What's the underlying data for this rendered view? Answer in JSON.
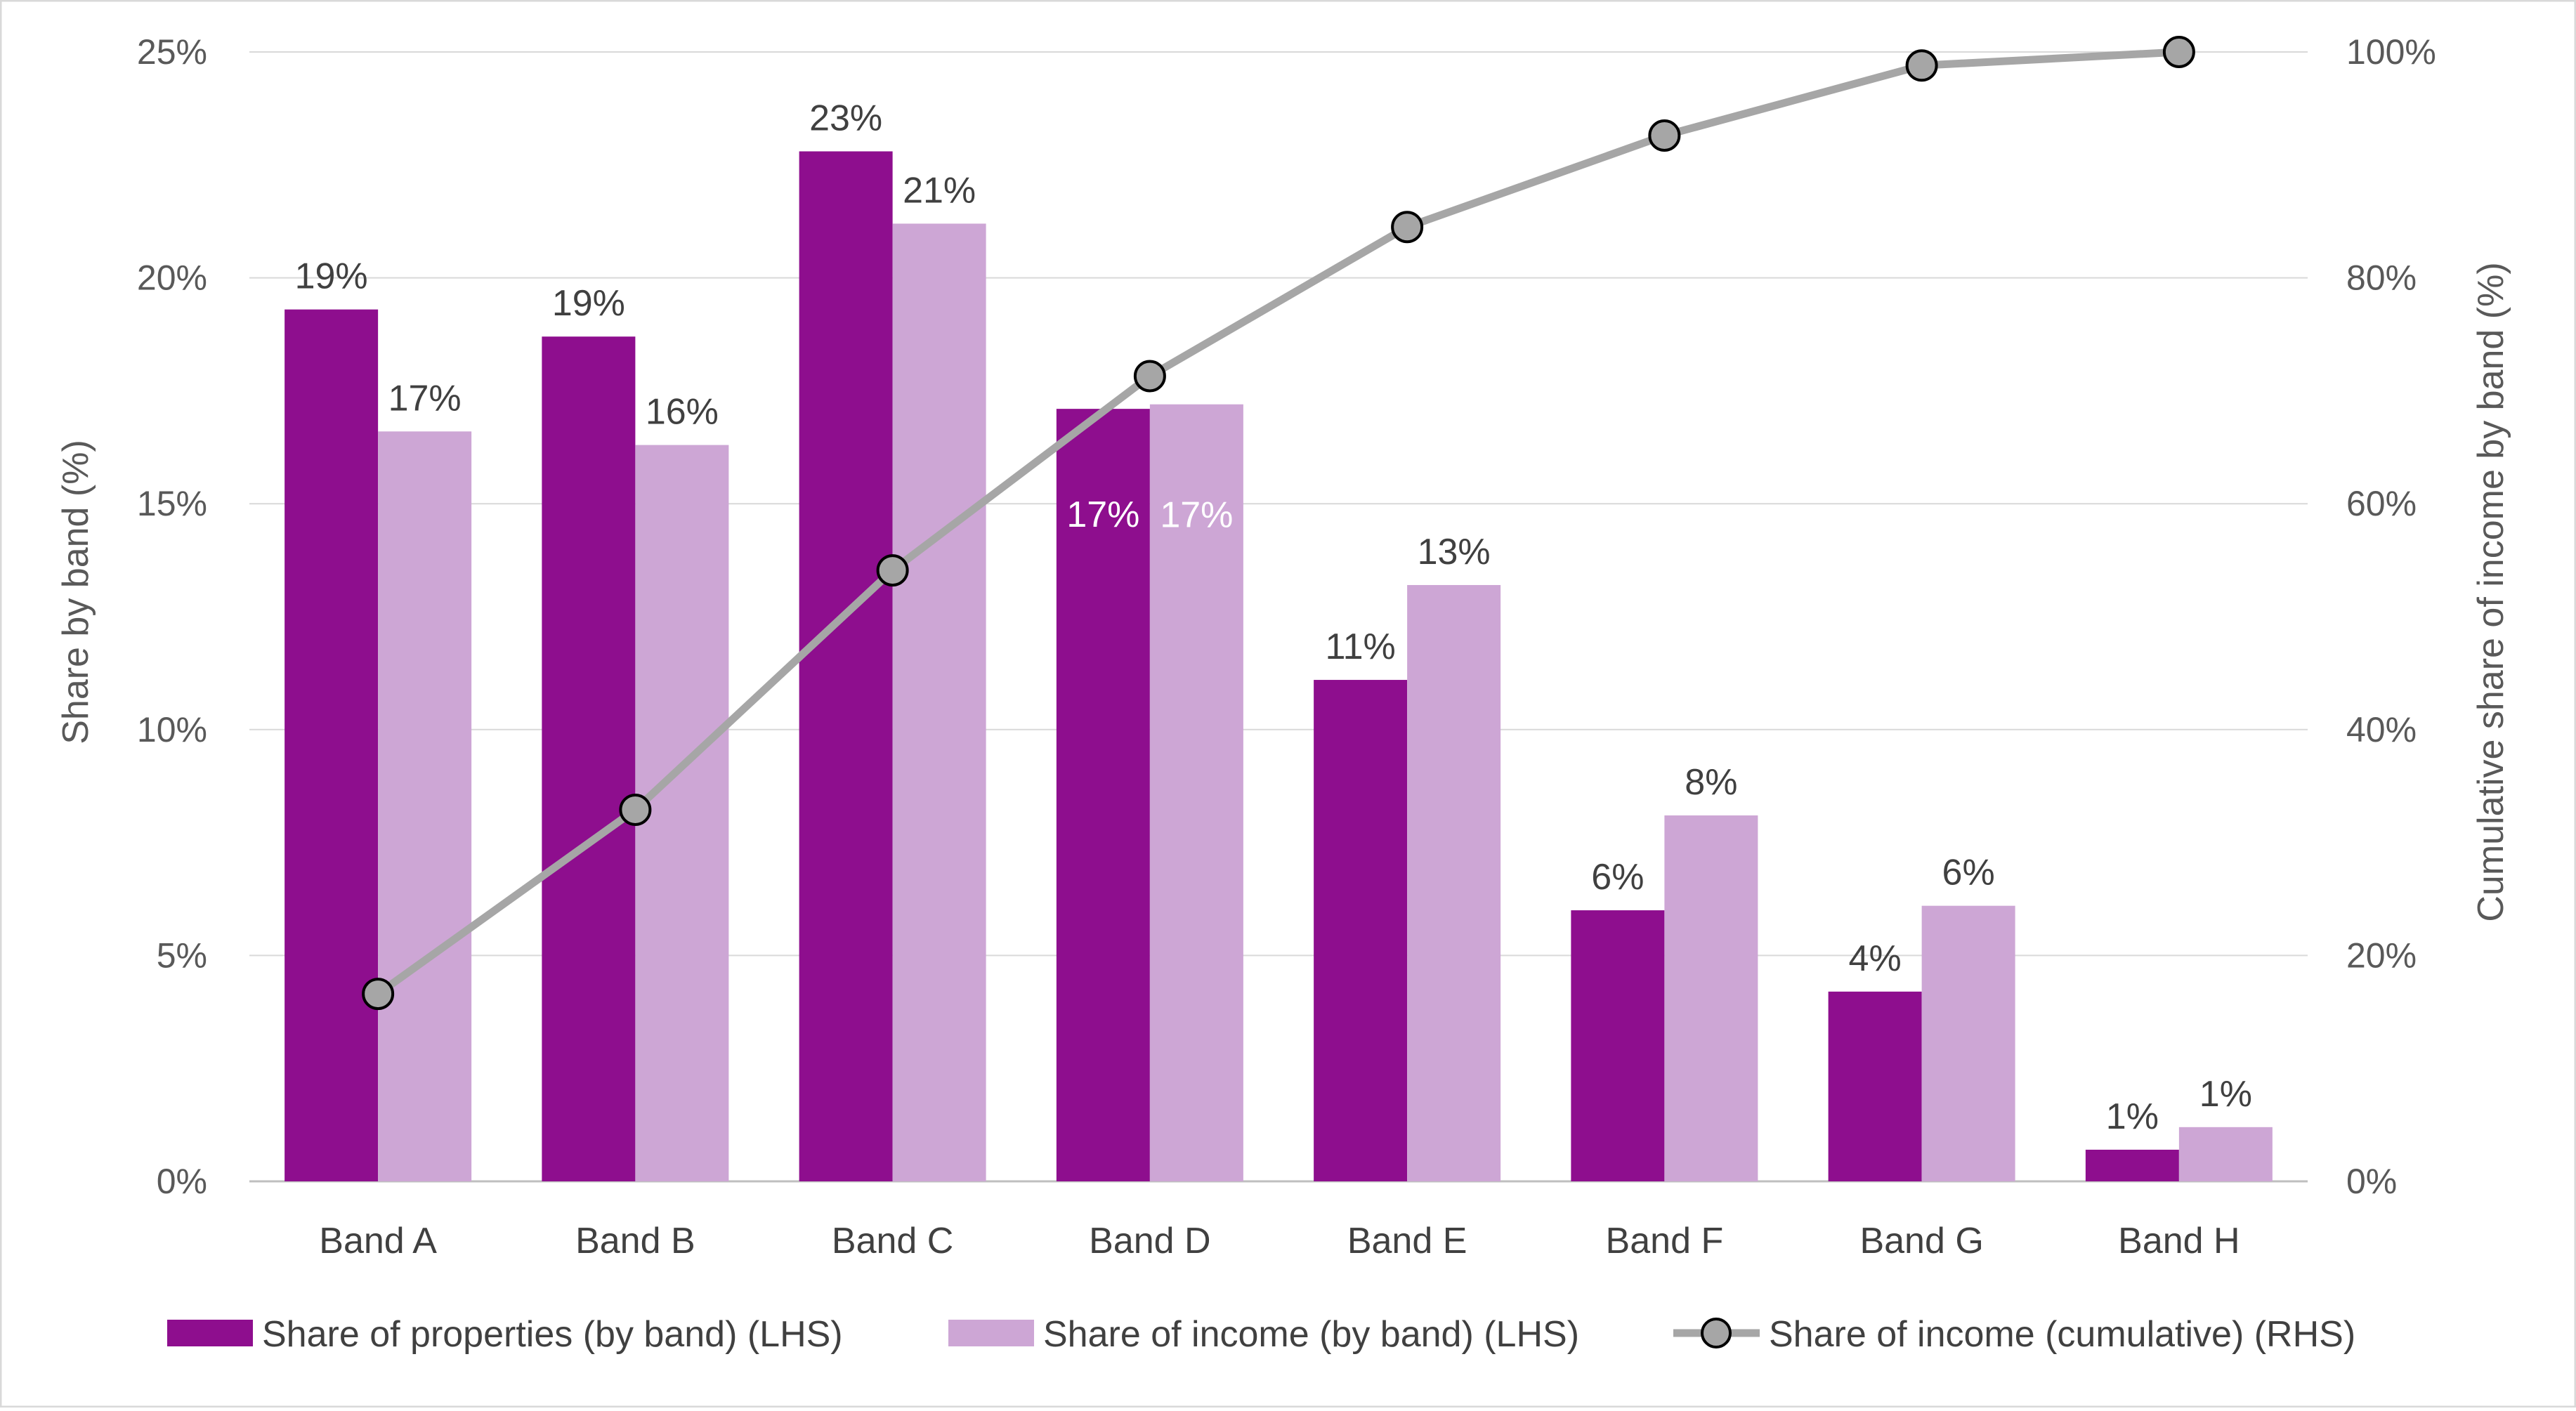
{
  "chart_data": {
    "type": "bar",
    "categories": [
      "Band A",
      "Band B",
      "Band C",
      "Band D",
      "Band E",
      "Band F",
      "Band G",
      "Band H"
    ],
    "series": [
      {
        "name": "Share of properties (by band) (LHS)",
        "type": "bar",
        "axis": "left",
        "color": "#8E0E8E",
        "values": [
          19.3,
          18.7,
          22.8,
          17.1,
          11.1,
          6.0,
          4.2,
          0.7
        ],
        "labels": [
          "19%",
          "19%",
          "23%",
          "17%",
          "11%",
          "6%",
          "4%",
          "1%"
        ]
      },
      {
        "name": "Share of income (by band) (LHS)",
        "type": "bar",
        "axis": "left",
        "color": "#CDA6D5",
        "values": [
          16.6,
          16.3,
          21.2,
          17.2,
          13.2,
          8.1,
          6.1,
          1.2
        ],
        "labels": [
          "17%",
          "16%",
          "21%",
          "17%",
          "13%",
          "8%",
          "6%",
          "1%"
        ]
      },
      {
        "name": "Share of income (cumulative) (RHS)",
        "type": "line",
        "axis": "right",
        "color": "#A6A6A6",
        "values": [
          16.6,
          32.9,
          54.1,
          71.3,
          84.5,
          92.6,
          98.8,
          100.0
        ]
      }
    ],
    "ylabel": "Share by band (%)",
    "y2label": "Cumulative share of income by band (%)",
    "ylim": [
      0,
      25
    ],
    "y2lim": [
      0,
      100
    ],
    "yticks": [
      "0%",
      "5%",
      "10%",
      "15%",
      "20%",
      "25%"
    ],
    "y2ticks": [
      "0%",
      "20%",
      "40%",
      "60%",
      "80%",
      "100%"
    ],
    "grid": true,
    "legend": "bottom"
  }
}
